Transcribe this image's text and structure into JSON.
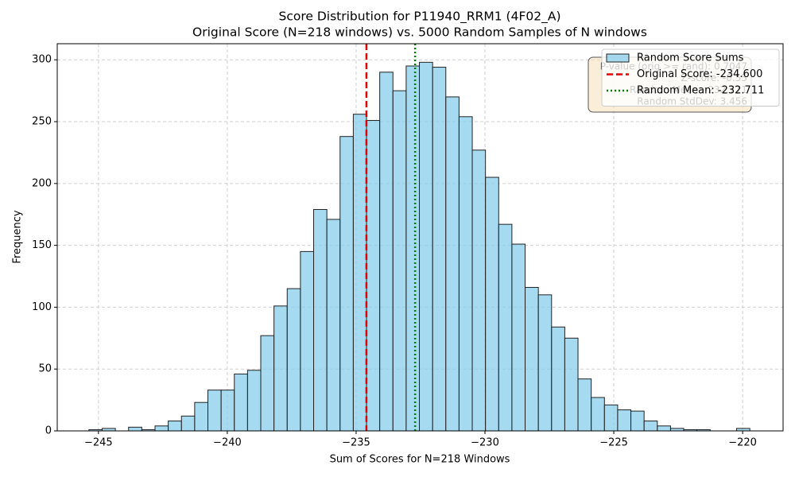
{
  "chart_data": {
    "type": "histogram",
    "title": "Score Distribution for P11940_RRM1 (4F02_A)",
    "subtitle": "Original Score (N=218 windows) vs. 5000 Random Samples of N windows",
    "x_label": "Sum of Scores for N=218 Windows",
    "y_label": "Frequency",
    "bins": [
      -245.37,
      -244.857,
      -244.344,
      -243.831,
      -243.318,
      -242.805,
      -242.292,
      -241.779,
      -241.266,
      -240.753,
      -240.24,
      -239.727,
      -239.214,
      -238.701,
      -238.188,
      -237.675,
      -237.162,
      -236.649,
      -236.136,
      -235.623,
      -235.11,
      -234.597,
      -234.084,
      -233.571,
      -233.058,
      -232.545,
      -232.032,
      -231.519,
      -231.006,
      -230.493,
      -229.98,
      -229.467,
      -228.954,
      -228.441,
      -227.928,
      -227.415,
      -226.902,
      -226.389,
      -225.876,
      -225.363,
      -224.85,
      -224.337,
      -223.824,
      -223.311,
      -222.798,
      -222.285,
      -221.772,
      -221.259,
      -220.746,
      -220.233,
      -219.72
    ],
    "series": [
      {
        "name": "Random Score Sums",
        "color": "#87ceeb",
        "values": [
          1,
          2,
          0,
          3,
          1,
          4,
          8,
          12,
          23,
          33,
          33,
          46,
          49,
          77,
          101,
          115,
          145,
          179,
          171,
          238,
          256,
          251,
          290,
          275,
          295,
          298,
          294,
          270,
          254,
          227,
          205,
          167,
          151,
          116,
          110,
          84,
          75,
          42,
          27,
          21,
          17,
          16,
          8,
          4,
          2,
          1,
          1,
          0,
          0,
          2
        ]
      }
    ],
    "vlines": [
      {
        "name": "Original Score: -234.600",
        "value": -234.6,
        "color": "#e00000",
        "style": "dashed"
      },
      {
        "name": "Random Mean: -232.711",
        "value": -232.711,
        "color": "#008000",
        "style": "dotted"
      }
    ],
    "stats_box": [
      "P-value (orig >= rand): 0.7047",
      "Z-score: -0.55",
      "Random Mean: -232.711",
      "Random StdDev: 3.456"
    ],
    "xlim": [
      -246.6,
      -218.43
    ],
    "ylim": [
      0,
      313
    ],
    "xticks": [
      {
        "value": -245,
        "label": "−245"
      },
      {
        "value": -240,
        "label": "−240"
      },
      {
        "value": -235,
        "label": "−235"
      },
      {
        "value": -230,
        "label": "−230"
      },
      {
        "value": -225,
        "label": "−225"
      },
      {
        "value": -220,
        "label": "−220"
      }
    ],
    "yticks": [
      0,
      50,
      100,
      150,
      200,
      250,
      300
    ],
    "grid": true,
    "legend": "upper right"
  }
}
